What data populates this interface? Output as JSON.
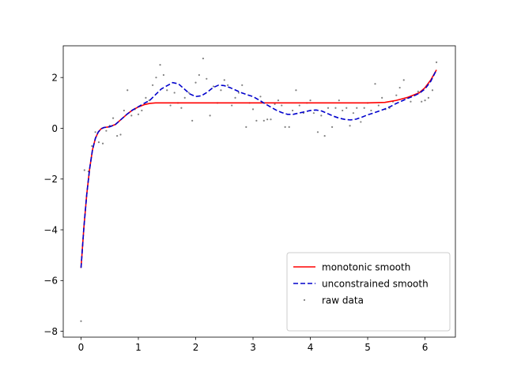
{
  "chart_data": {
    "type": "line",
    "title": "",
    "xlabel": "",
    "ylabel": "",
    "xlim": [
      -0.31,
      6.53
    ],
    "ylim": [
      -8.23,
      3.25
    ],
    "xticks": [
      0,
      1,
      2,
      3,
      4,
      5,
      6
    ],
    "yticks": [
      -8,
      -6,
      -4,
      -2,
      0,
      2
    ],
    "grid": false,
    "legend_position": "lower-right",
    "series": [
      {
        "name": "monotonic smooth",
        "style": "solid",
        "color": "#ff0000",
        "x": [
          0,
          0.05,
          0.1,
          0.15,
          0.2,
          0.25,
          0.3,
          0.35,
          0.4,
          0.5,
          0.6,
          0.7,
          0.8,
          0.9,
          1.0,
          1.1,
          1.2,
          1.3,
          1.5,
          2.0,
          3.0,
          4.0,
          5.0,
          5.3,
          5.5,
          5.7,
          5.9,
          6.0,
          6.1,
          6.2
        ],
        "y": [
          -5.5,
          -3.9,
          -2.6,
          -1.6,
          -0.85,
          -0.4,
          -0.15,
          -0.02,
          0.03,
          0.06,
          0.15,
          0.35,
          0.55,
          0.72,
          0.84,
          0.93,
          0.98,
          1.0,
          1.0,
          1.0,
          1.0,
          1.0,
          1.0,
          1.02,
          1.1,
          1.22,
          1.4,
          1.6,
          1.9,
          2.3
        ]
      },
      {
        "name": "unconstrained smooth",
        "style": "dashed",
        "color": "#0000cc",
        "x": [
          0,
          0.05,
          0.1,
          0.15,
          0.2,
          0.25,
          0.3,
          0.35,
          0.4,
          0.5,
          0.6,
          0.7,
          0.8,
          0.9,
          1.0,
          1.1,
          1.2,
          1.4,
          1.6,
          1.7,
          1.8,
          1.9,
          2.0,
          2.1,
          2.2,
          2.3,
          2.4,
          2.5,
          2.6,
          2.7,
          2.8,
          2.9,
          3.0,
          3.1,
          3.2,
          3.3,
          3.4,
          3.5,
          3.6,
          3.7,
          3.8,
          3.9,
          4.0,
          4.1,
          4.2,
          4.3,
          4.4,
          4.5,
          4.6,
          4.7,
          4.8,
          4.9,
          5.0,
          5.1,
          5.2,
          5.3,
          5.4,
          5.5,
          5.6,
          5.7,
          5.8,
          5.9,
          6.0,
          6.1,
          6.2
        ],
        "y": [
          -5.5,
          -3.9,
          -2.6,
          -1.6,
          -0.85,
          -0.4,
          -0.15,
          -0.02,
          0.03,
          0.06,
          0.15,
          0.35,
          0.55,
          0.72,
          0.85,
          0.98,
          1.1,
          1.55,
          1.8,
          1.75,
          1.55,
          1.35,
          1.25,
          1.28,
          1.42,
          1.6,
          1.7,
          1.68,
          1.6,
          1.5,
          1.4,
          1.32,
          1.25,
          1.12,
          0.98,
          0.85,
          0.72,
          0.62,
          0.55,
          0.55,
          0.6,
          0.65,
          0.7,
          0.72,
          0.68,
          0.58,
          0.48,
          0.4,
          0.35,
          0.33,
          0.36,
          0.44,
          0.53,
          0.6,
          0.68,
          0.76,
          0.86,
          0.98,
          1.08,
          1.18,
          1.27,
          1.38,
          1.55,
          1.85,
          2.3
        ]
      }
    ],
    "scatter": {
      "name": "raw data",
      "color": "#808080",
      "x": [
        0,
        0.06,
        0.13,
        0.19,
        0.25,
        0.31,
        0.38,
        0.44,
        0.5,
        0.56,
        0.63,
        0.69,
        0.75,
        0.81,
        0.88,
        0.94,
        1.0,
        1.06,
        1.13,
        1.19,
        1.25,
        1.31,
        1.38,
        1.44,
        1.5,
        1.56,
        1.63,
        1.69,
        1.75,
        1.81,
        1.88,
        1.94,
        2.0,
        2.06,
        2.13,
        2.19,
        2.25,
        2.31,
        2.38,
        2.44,
        2.5,
        2.56,
        2.63,
        2.69,
        2.75,
        2.81,
        2.88,
        2.94,
        3.0,
        3.06,
        3.13,
        3.19,
        3.25,
        3.31,
        3.38,
        3.44,
        3.5,
        3.56,
        3.63,
        3.69,
        3.75,
        3.81,
        3.88,
        3.94,
        4.0,
        4.06,
        4.13,
        4.19,
        4.25,
        4.31,
        4.38,
        4.44,
        4.5,
        4.56,
        4.63,
        4.69,
        4.75,
        4.81,
        4.88,
        4.94,
        5.0,
        5.06,
        5.13,
        5.19,
        5.25,
        5.31,
        5.38,
        5.44,
        5.5,
        5.56,
        5.63,
        5.69,
        5.75,
        5.81,
        5.88,
        5.94,
        6.0,
        6.06,
        6.13,
        6.2
      ],
      "y": [
        -7.6,
        -1.65,
        -1.7,
        -0.7,
        -0.15,
        -0.55,
        -0.6,
        -0.1,
        0.1,
        0.4,
        -0.3,
        -0.25,
        0.7,
        1.5,
        0.5,
        0.75,
        0.55,
        0.7,
        1.2,
        1.1,
        1.7,
        2.0,
        2.5,
        2.1,
        1.5,
        0.9,
        1.4,
        1.0,
        0.8,
        1.2,
        1.4,
        0.3,
        1.8,
        2.1,
        2.75,
        1.95,
        0.5,
        1.65,
        1.0,
        1.5,
        1.9,
        1.7,
        0.9,
        1.2,
        1.4,
        1.7,
        0.05,
        1.0,
        0.75,
        0.3,
        1.25,
        0.3,
        0.35,
        0.35,
        0.95,
        1.1,
        0.9,
        0.05,
        0.05,
        0.7,
        1.5,
        0.9,
        0.6,
        1.0,
        1.1,
        0.6,
        -0.15,
        0.5,
        -0.3,
        0.8,
        0.05,
        0.8,
        1.1,
        0.7,
        0.8,
        0.1,
        0.6,
        0.8,
        0.25,
        0.8,
        1.0,
        0.7,
        1.75,
        0.9,
        1.2,
        0.75,
        0.8,
        1.05,
        1.3,
        1.6,
        1.9,
        1.2,
        1.05,
        1.3,
        1.45,
        1.05,
        1.1,
        1.2,
        1.5,
        2.6
      ]
    }
  }
}
